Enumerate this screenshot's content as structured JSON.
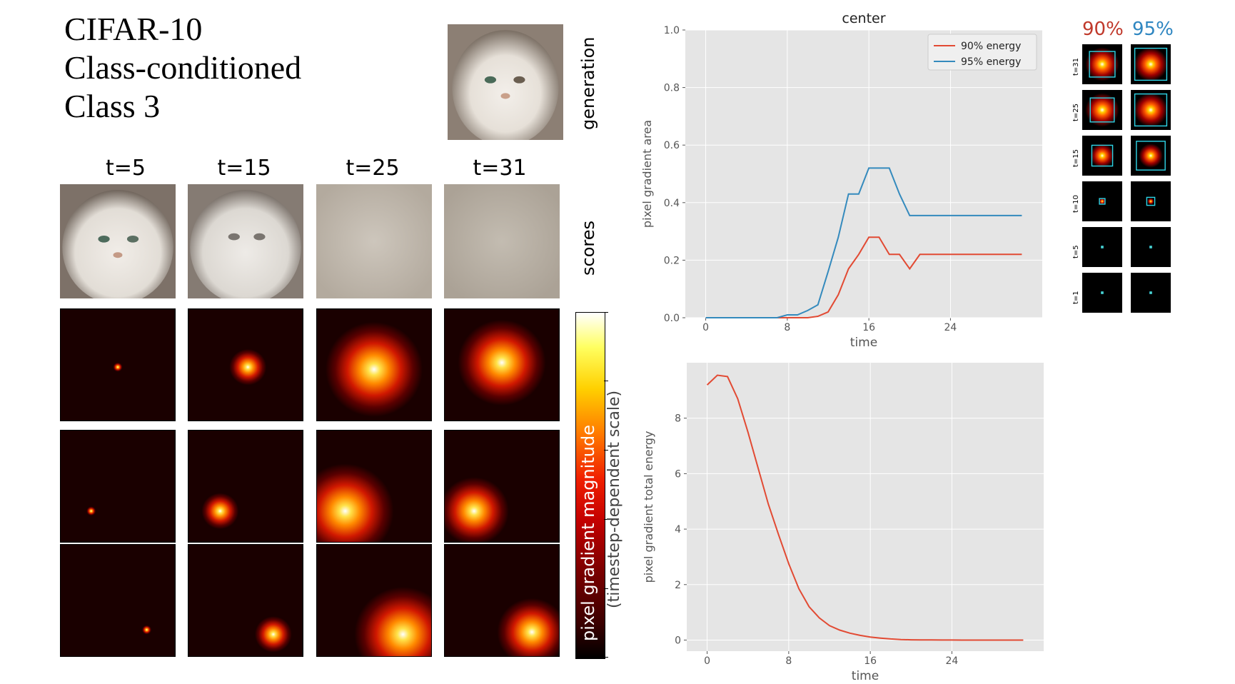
{
  "title": {
    "line1": "CIFAR-10",
    "line2": "Class-conditioned",
    "line3": "Class 3"
  },
  "labels": {
    "generation": "generation",
    "scores": "scores",
    "colorbar_main": "pixel gradient magnitude",
    "colorbar_sub": "(timestep-dependent scale)"
  },
  "columns": [
    "t=5",
    "t=15",
    "t=25",
    "t=31"
  ],
  "thumbs": {
    "header_90": "90%",
    "header_95": "95%",
    "color_90": "#c0392b",
    "color_95": "#2e86c1",
    "rows": [
      "t=31",
      "t=25",
      "t=15",
      "t=10",
      "t=5",
      "t=1"
    ]
  },
  "chart_data": [
    {
      "type": "line",
      "title": "center",
      "xlabel": "time",
      "ylabel": "pixel gradient area",
      "xlim": [
        -2,
        33
      ],
      "ylim": [
        0,
        1.0
      ],
      "xticks": [
        0,
        8,
        16,
        24
      ],
      "yticks": [
        0.0,
        0.2,
        0.4,
        0.6,
        0.8,
        1.0
      ],
      "ytick_labels": [
        "0.0",
        "0.2",
        "0.4",
        "0.6",
        "0.8",
        "1.0"
      ],
      "legend_position": "top-right",
      "grid": true,
      "series": [
        {
          "name": "90% energy",
          "color": "#e24a33",
          "x": [
            0,
            1,
            2,
            3,
            4,
            5,
            6,
            7,
            8,
            9,
            10,
            11,
            12,
            13,
            14,
            15,
            16,
            17,
            18,
            19,
            20,
            21,
            22,
            23,
            24,
            25,
            26,
            27,
            28,
            29,
            30,
            31
          ],
          "y": [
            0,
            0,
            0,
            0,
            0,
            0,
            0,
            0,
            0,
            0,
            0,
            0.005,
            0.02,
            0.08,
            0.17,
            0.22,
            0.28,
            0.28,
            0.22,
            0.22,
            0.17,
            0.22,
            0.22,
            0.22,
            0.22,
            0.22,
            0.22,
            0.22,
            0.22,
            0.22,
            0.22,
            0.22
          ]
        },
        {
          "name": "95% energy",
          "color": "#348abd",
          "x": [
            0,
            1,
            2,
            3,
            4,
            5,
            6,
            7,
            8,
            9,
            10,
            11,
            12,
            13,
            14,
            15,
            16,
            17,
            18,
            19,
            20,
            21,
            22,
            23,
            24,
            25,
            26,
            27,
            28,
            29,
            30,
            31
          ],
          "y": [
            0,
            0,
            0,
            0,
            0,
            0,
            0,
            0,
            0.01,
            0.01,
            0.025,
            0.045,
            0.16,
            0.28,
            0.43,
            0.43,
            0.52,
            0.52,
            0.52,
            0.43,
            0.355,
            0.355,
            0.355,
            0.355,
            0.355,
            0.355,
            0.355,
            0.355,
            0.355,
            0.355,
            0.355,
            0.355
          ]
        }
      ]
    },
    {
      "type": "line",
      "title": "",
      "xlabel": "time",
      "ylabel": "pixel gradient total energy",
      "xlim": [
        -2,
        33
      ],
      "ylim": [
        -0.4,
        10
      ],
      "xticks": [
        0,
        8,
        16,
        24
      ],
      "yticks": [
        0,
        2,
        4,
        6,
        8
      ],
      "ytick_labels": [
        "0",
        "2",
        "4",
        "6",
        "8"
      ],
      "grid": true,
      "series": [
        {
          "color": "#e24a33",
          "x": [
            0,
            1,
            2,
            3,
            4,
            5,
            6,
            7,
            8,
            9,
            10,
            11,
            12,
            13,
            14,
            15,
            16,
            17,
            18,
            19,
            20,
            21,
            22,
            23,
            24,
            25,
            26,
            27,
            28,
            29,
            30,
            31
          ],
          "y": [
            9.2,
            9.55,
            9.5,
            8.7,
            7.5,
            6.2,
            4.9,
            3.8,
            2.75,
            1.85,
            1.2,
            0.8,
            0.52,
            0.36,
            0.25,
            0.17,
            0.11,
            0.07,
            0.04,
            0.02,
            0.01,
            0.005,
            0.003,
            0.002,
            0.001,
            0,
            0,
            0,
            0,
            0,
            0,
            0
          ]
        }
      ]
    }
  ]
}
